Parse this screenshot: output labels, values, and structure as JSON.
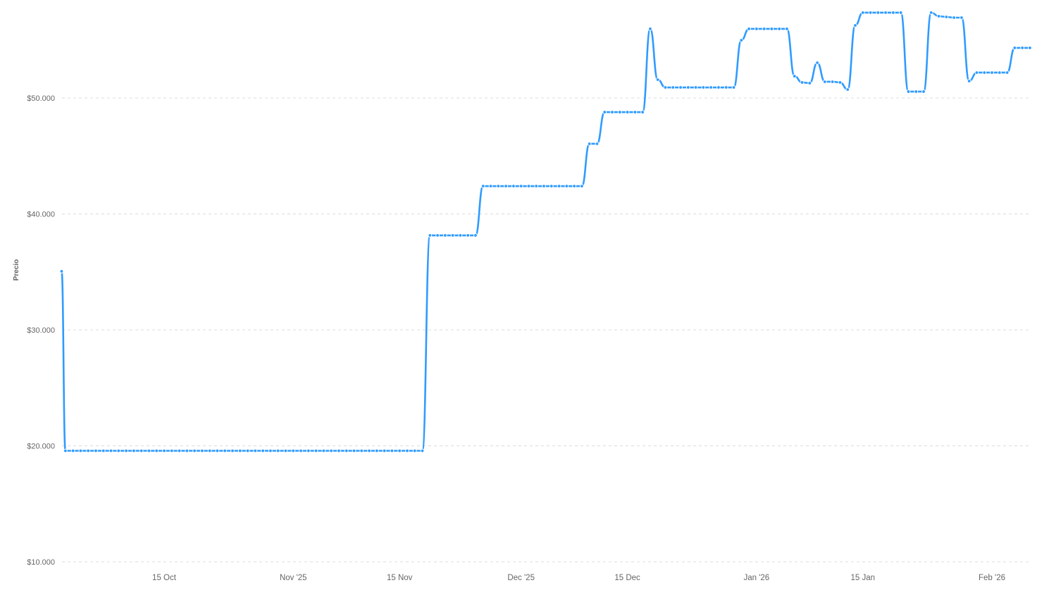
{
  "chart_data": {
    "type": "line",
    "title": "",
    "xlabel": "",
    "ylabel": "Precio",
    "ylim": [
      10000,
      57500
    ],
    "grid": true,
    "color": "#2f9bff",
    "y_ticks": [
      {
        "value": 10000,
        "label": "$10.000"
      },
      {
        "value": 20000,
        "label": "$20.000"
      },
      {
        "value": 30000,
        "label": "$30.000"
      },
      {
        "value": 40000,
        "label": "$40.000"
      },
      {
        "value": 50000,
        "label": "$50.000"
      }
    ],
    "x_ticks": [
      {
        "date": "2025-10-15",
        "label": "15 Oct"
      },
      {
        "date": "2025-11-01",
        "label": "Nov '25"
      },
      {
        "date": "2025-11-15",
        "label": "15 Nov"
      },
      {
        "date": "2025-12-01",
        "label": "Dec '25"
      },
      {
        "date": "2025-12-15",
        "label": "15 Dec"
      },
      {
        "date": "2026-01-01",
        "label": "Jan '26"
      },
      {
        "date": "2026-01-15",
        "label": "15 Jan"
      },
      {
        "date": "2026-02-01",
        "label": "Feb '26"
      }
    ],
    "points": [
      [
        "2025-10-01T12:00",
        35050
      ],
      [
        "2025-10-02",
        19575
      ],
      [
        "2025-10-03",
        19575
      ],
      [
        "2025-10-04",
        19575
      ],
      [
        "2025-10-05",
        19575
      ],
      [
        "2025-10-06",
        19575
      ],
      [
        "2025-10-07",
        19575
      ],
      [
        "2025-10-08",
        19575
      ],
      [
        "2025-10-09",
        19575
      ],
      [
        "2025-10-10",
        19575
      ],
      [
        "2025-10-11",
        19575
      ],
      [
        "2025-10-12",
        19575
      ],
      [
        "2025-10-13",
        19575
      ],
      [
        "2025-10-14",
        19575
      ],
      [
        "2025-10-15",
        19575
      ],
      [
        "2025-10-16",
        19575
      ],
      [
        "2025-10-17",
        19575
      ],
      [
        "2025-10-18",
        19575
      ],
      [
        "2025-10-19",
        19575
      ],
      [
        "2025-10-20",
        19575
      ],
      [
        "2025-10-21",
        19575
      ],
      [
        "2025-10-22",
        19575
      ],
      [
        "2025-10-23",
        19575
      ],
      [
        "2025-10-24",
        19575
      ],
      [
        "2025-10-25",
        19575
      ],
      [
        "2025-10-26",
        19575
      ],
      [
        "2025-10-27",
        19575
      ],
      [
        "2025-10-28",
        19575
      ],
      [
        "2025-10-29",
        19575
      ],
      [
        "2025-10-30",
        19575
      ],
      [
        "2025-10-31",
        19575
      ],
      [
        "2025-11-01",
        19575
      ],
      [
        "2025-11-02",
        19575
      ],
      [
        "2025-11-03",
        19575
      ],
      [
        "2025-11-04",
        19575
      ],
      [
        "2025-11-05",
        19575
      ],
      [
        "2025-11-06",
        19575
      ],
      [
        "2025-11-07",
        19575
      ],
      [
        "2025-11-08",
        19575
      ],
      [
        "2025-11-09",
        19575
      ],
      [
        "2025-11-10",
        19575
      ],
      [
        "2025-11-11",
        19575
      ],
      [
        "2025-11-12",
        19575
      ],
      [
        "2025-11-13",
        19575
      ],
      [
        "2025-11-14",
        19575
      ],
      [
        "2025-11-15",
        19575
      ],
      [
        "2025-11-16",
        19575
      ],
      [
        "2025-11-17",
        19575
      ],
      [
        "2025-11-18",
        19575
      ],
      [
        "2025-11-19",
        38150
      ],
      [
        "2025-11-20",
        38150
      ],
      [
        "2025-11-21",
        38150
      ],
      [
        "2025-11-22",
        38150
      ],
      [
        "2025-11-23",
        38150
      ],
      [
        "2025-11-24",
        38150
      ],
      [
        "2025-11-25",
        38150
      ],
      [
        "2025-11-26",
        42400
      ],
      [
        "2025-11-27",
        42400
      ],
      [
        "2025-11-28",
        42400
      ],
      [
        "2025-11-29",
        42400
      ],
      [
        "2025-11-30",
        42400
      ],
      [
        "2025-12-01",
        42400
      ],
      [
        "2025-12-02",
        42400
      ],
      [
        "2025-12-03",
        42400
      ],
      [
        "2025-12-04",
        42400
      ],
      [
        "2025-12-05",
        42400
      ],
      [
        "2025-12-06",
        42400
      ],
      [
        "2025-12-07",
        42400
      ],
      [
        "2025-12-08",
        42400
      ],
      [
        "2025-12-09",
        42400
      ],
      [
        "2025-12-10",
        46050
      ],
      [
        "2025-12-11",
        46050
      ],
      [
        "2025-12-12",
        48780
      ],
      [
        "2025-12-13",
        48780
      ],
      [
        "2025-12-14",
        48780
      ],
      [
        "2025-12-15",
        48780
      ],
      [
        "2025-12-16",
        48780
      ],
      [
        "2025-12-17",
        48780
      ],
      [
        "2025-12-18",
        55960
      ],
      [
        "2025-12-19",
        51580
      ],
      [
        "2025-12-20",
        50910
      ],
      [
        "2025-12-21",
        50910
      ],
      [
        "2025-12-22",
        50910
      ],
      [
        "2025-12-23",
        50910
      ],
      [
        "2025-12-24",
        50910
      ],
      [
        "2025-12-25",
        50910
      ],
      [
        "2025-12-26",
        50910
      ],
      [
        "2025-12-27",
        50910
      ],
      [
        "2025-12-28",
        50910
      ],
      [
        "2025-12-29",
        50910
      ],
      [
        "2025-12-30",
        54980
      ],
      [
        "2025-12-31",
        55960
      ],
      [
        "2026-01-01",
        55960
      ],
      [
        "2026-01-02",
        55960
      ],
      [
        "2026-01-03",
        55960
      ],
      [
        "2026-01-04",
        55960
      ],
      [
        "2026-01-05",
        55960
      ],
      [
        "2026-01-06",
        51880
      ],
      [
        "2026-01-07",
        51340
      ],
      [
        "2026-01-08",
        51280
      ],
      [
        "2026-01-09",
        53040
      ],
      [
        "2026-01-10",
        51400
      ],
      [
        "2026-01-11",
        51400
      ],
      [
        "2026-01-12",
        51340
      ],
      [
        "2026-01-13",
        50730
      ],
      [
        "2026-01-14",
        56260
      ],
      [
        "2026-01-15",
        57360
      ],
      [
        "2026-01-16",
        57360
      ],
      [
        "2026-01-17",
        57360
      ],
      [
        "2026-01-18",
        57360
      ],
      [
        "2026-01-19",
        57360
      ],
      [
        "2026-01-20",
        57360
      ],
      [
        "2026-01-21",
        50550
      ],
      [
        "2026-01-22",
        50550
      ],
      [
        "2026-01-23",
        50550
      ],
      [
        "2026-01-24",
        57360
      ],
      [
        "2026-01-25",
        57050
      ],
      [
        "2026-01-26",
        56990
      ],
      [
        "2026-01-27",
        56930
      ],
      [
        "2026-01-28",
        56930
      ],
      [
        "2026-01-29",
        51460
      ],
      [
        "2026-01-30",
        52190
      ],
      [
        "2026-01-31",
        52190
      ],
      [
        "2026-02-01",
        52190
      ],
      [
        "2026-02-02",
        52190
      ],
      [
        "2026-02-03",
        52190
      ],
      [
        "2026-02-04",
        54320
      ],
      [
        "2026-02-05",
        54320
      ],
      [
        "2026-02-06",
        54320
      ]
    ]
  }
}
